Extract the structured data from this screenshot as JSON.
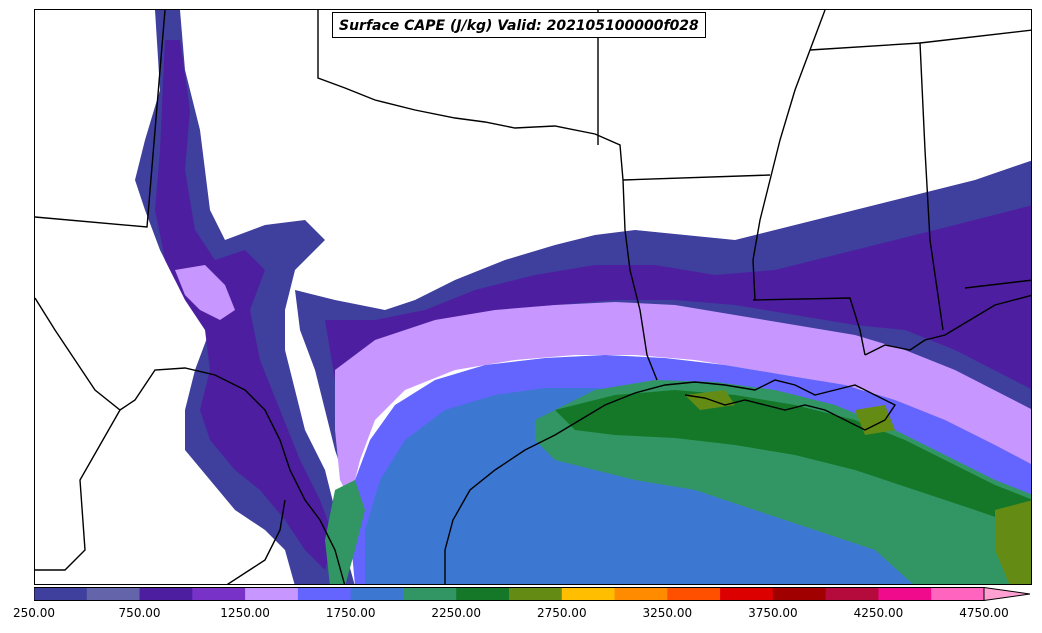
{
  "title": "Surface CAPE (J/kg) Valid: 202105100000f028",
  "colorbar": {
    "colors": [
      "#3f3f9e",
      "#6464aa",
      "#4e1ea0",
      "#7832c8",
      "#c896ff",
      "#6464ff",
      "#3c78d2",
      "#329664",
      "#147828",
      "#648c14",
      "#ffbe00",
      "#ff8c00",
      "#ff5000",
      "#dc0000",
      "#a00000",
      "#b40a3c",
      "#f00a8c",
      "#ff64be",
      "#ffa0d2"
    ],
    "tick_labels": [
      "250.00",
      "750.00",
      "1250.00",
      "1750.00",
      "2250.00",
      "2750.00",
      "3250.00",
      "3750.00",
      "4250.00",
      "4750.00"
    ]
  }
}
